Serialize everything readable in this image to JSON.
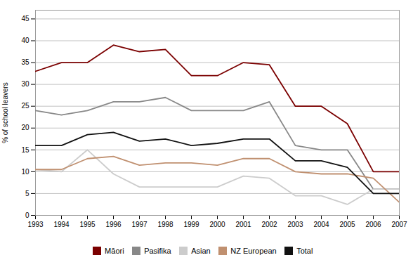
{
  "chart_data": {
    "type": "line",
    "x": [
      1993,
      1994,
      1995,
      1996,
      1997,
      1998,
      1999,
      2000,
      2001,
      2002,
      2003,
      2004,
      2005,
      2006,
      2007
    ],
    "series": [
      {
        "name": "Māori",
        "color": "#7B0000",
        "values": [
          33,
          35,
          35,
          39,
          37.5,
          38,
          32,
          32,
          35,
          34.5,
          25,
          25,
          21,
          10,
          10
        ]
      },
      {
        "name": "Pasifika",
        "color": "#888888",
        "values": [
          24,
          23,
          24,
          26,
          26,
          27,
          24,
          24,
          24,
          26,
          16,
          15,
          15,
          6,
          6
        ]
      },
      {
        "name": "Asian",
        "color": "#cccccc",
        "values": [
          10.5,
          10,
          15,
          9.5,
          6.5,
          6.5,
          6.5,
          6.5,
          9,
          8.5,
          4.5,
          4.5,
          2.5,
          6,
          6
        ]
      },
      {
        "name": "NZ European",
        "color": "#c09070",
        "values": [
          10.5,
          10.5,
          13,
          13.5,
          11.5,
          12,
          12,
          11.5,
          13,
          13,
          10,
          9.5,
          9.5,
          8.5,
          3
        ]
      },
      {
        "name": "Total",
        "color": "#111111",
        "values": [
          16,
          16,
          18.5,
          19,
          17,
          17.5,
          16,
          16.5,
          17.5,
          17.5,
          12.5,
          12.5,
          11,
          5,
          5
        ]
      }
    ],
    "ylabel": "% of school leavers",
    "xlim": [
      1993,
      2007
    ],
    "xticks": [
      1993,
      1994,
      1995,
      1996,
      1997,
      1998,
      1999,
      2000,
      2001,
      2002,
      2003,
      2004,
      2005,
      2006,
      2007
    ],
    "ylim": [
      0,
      47
    ],
    "yticks": [
      0,
      5,
      10,
      15,
      20,
      25,
      30,
      35,
      40,
      45
    ],
    "grid": true,
    "legend": "bottom"
  }
}
